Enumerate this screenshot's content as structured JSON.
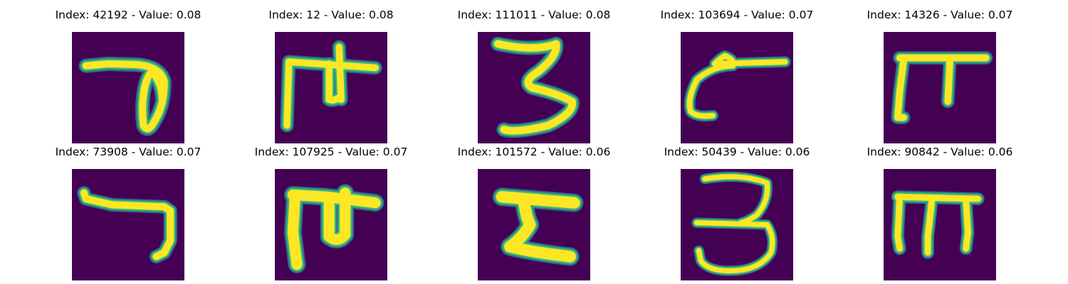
{
  "colors": {
    "background": "#440154",
    "edge_dark": "#31688e",
    "edge_mid": "#35b779",
    "stroke": "#fde725"
  },
  "panels": [
    {
      "title": "Index: 42192 - Value: 0.08",
      "glyph": "loop-hook"
    },
    {
      "title": "Index: 12 - Value: 0.08",
      "glyph": "double-stem-cross"
    },
    {
      "title": "Index: 111011 - Value: 0.08",
      "glyph": "zigzag-three"
    },
    {
      "title": "Index: 103694 - Value: 0.07",
      "glyph": "bar-hook"
    },
    {
      "title": "Index: 14326 - Value: 0.07",
      "glyph": "pi-shape"
    },
    {
      "title": "Index: 73908 - Value: 0.07",
      "glyph": "seven-hook"
    },
    {
      "title": "Index: 107925 - Value: 0.07",
      "glyph": "bold-double-stem"
    },
    {
      "title": "Index: 101572 - Value: 0.06",
      "glyph": "hourglass-zigzag"
    },
    {
      "title": "Index: 50439 - Value: 0.06",
      "glyph": "three"
    },
    {
      "title": "Index: 90842 - Value: 0.06",
      "glyph": "triple-stem"
    }
  ]
}
